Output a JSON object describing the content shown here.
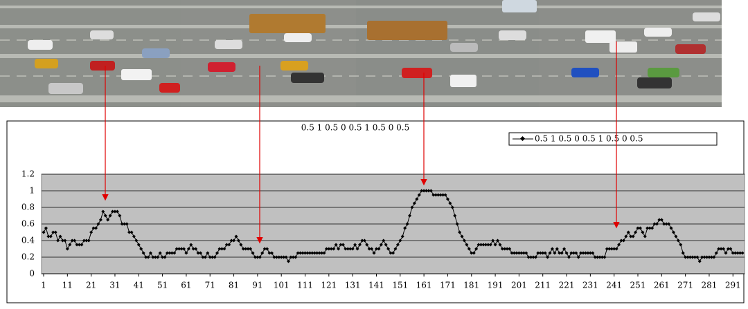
{
  "chart_data": {
    "type": "line",
    "title": "0.5 1 0.5 0 0.5 1 0.5 0 0.5",
    "x": [
      1,
      2,
      3,
      4,
      5,
      6,
      7,
      8,
      9,
      10,
      11,
      12,
      13,
      14,
      15,
      16,
      17,
      18,
      19,
      20,
      21,
      22,
      23,
      24,
      25,
      26,
      27,
      28,
      29,
      30,
      31,
      32,
      33,
      34,
      35,
      36,
      37,
      38,
      39,
      40,
      41,
      42,
      43,
      44,
      45,
      46,
      47,
      48,
      49,
      50,
      51,
      52,
      53,
      54,
      55,
      56,
      57,
      58,
      59,
      60,
      61,
      62,
      63,
      64,
      65,
      66,
      67,
      68,
      69,
      70,
      71,
      72,
      73,
      74,
      75,
      76,
      77,
      78,
      79,
      80,
      81,
      82,
      83,
      84,
      85,
      86,
      87,
      88,
      89,
      90,
      91,
      92,
      93,
      94,
      95,
      96,
      97,
      98,
      99,
      100,
      101,
      102,
      103,
      104,
      105,
      106,
      107,
      108,
      109,
      110,
      111,
      112,
      113,
      114,
      115,
      116,
      117,
      118,
      119,
      120,
      121,
      122,
      123,
      124,
      125,
      126,
      127,
      128,
      129,
      130,
      131,
      132,
      133,
      134,
      135,
      136,
      137,
      138,
      139,
      140,
      141,
      142,
      143,
      144,
      145,
      146,
      147,
      148,
      149,
      150,
      151,
      152,
      153,
      154,
      155,
      156,
      157,
      158,
      159,
      160,
      161,
      162,
      163,
      164,
      165,
      166,
      167,
      168,
      169,
      170,
      171,
      172,
      173,
      174,
      175,
      176,
      177,
      178,
      179,
      180,
      181,
      182,
      183,
      184,
      185,
      186,
      187,
      188,
      189,
      190,
      191,
      192,
      193,
      194,
      195,
      196,
      197,
      198,
      199,
      200,
      201,
      202,
      203,
      204,
      205,
      206,
      207,
      208,
      209,
      210,
      211,
      212,
      213,
      214,
      215,
      216,
      217,
      218,
      219,
      220,
      221,
      222,
      223,
      224,
      225,
      226,
      227,
      228,
      229,
      230,
      231,
      232,
      233,
      234,
      235,
      236,
      237,
      238,
      239,
      240,
      241,
      242,
      243,
      244,
      245,
      246,
      247,
      248,
      249,
      250,
      251,
      252,
      253,
      254,
      255,
      256,
      257,
      258,
      259,
      260,
      261,
      262,
      263,
      264,
      265,
      266,
      267,
      268,
      269,
      270,
      271,
      272,
      273,
      274,
      275,
      276,
      277,
      278,
      279,
      280,
      281,
      282,
      283,
      284,
      285,
      286,
      287,
      288,
      289,
      290,
      291,
      292,
      293,
      294,
      295
    ],
    "series": [
      {
        "name": "0.5 1 0.5 0 0.5 1 0.5 0 0.5",
        "color": "#000000",
        "values": [
          0.5,
          0.55,
          0.45,
          0.45,
          0.5,
          0.5,
          0.4,
          0.45,
          0.4,
          0.4,
          0.3,
          0.35,
          0.4,
          0.4,
          0.35,
          0.35,
          0.35,
          0.4,
          0.4,
          0.4,
          0.5,
          0.55,
          0.55,
          0.6,
          0.65,
          0.75,
          0.7,
          0.65,
          0.7,
          0.75,
          0.75,
          0.75,
          0.7,
          0.6,
          0.6,
          0.6,
          0.5,
          0.5,
          0.45,
          0.4,
          0.35,
          0.3,
          0.25,
          0.2,
          0.2,
          0.25,
          0.2,
          0.2,
          0.2,
          0.25,
          0.2,
          0.2,
          0.25,
          0.25,
          0.25,
          0.25,
          0.3,
          0.3,
          0.3,
          0.3,
          0.25,
          0.3,
          0.35,
          0.3,
          0.3,
          0.25,
          0.25,
          0.2,
          0.2,
          0.25,
          0.2,
          0.2,
          0.2,
          0.25,
          0.3,
          0.3,
          0.3,
          0.35,
          0.35,
          0.4,
          0.4,
          0.45,
          0.4,
          0.35,
          0.3,
          0.3,
          0.3,
          0.3,
          0.25,
          0.2,
          0.2,
          0.2,
          0.25,
          0.3,
          0.3,
          0.25,
          0.25,
          0.2,
          0.2,
          0.2,
          0.2,
          0.2,
          0.2,
          0.15,
          0.2,
          0.2,
          0.2,
          0.25,
          0.25,
          0.25,
          0.25,
          0.25,
          0.25,
          0.25,
          0.25,
          0.25,
          0.25,
          0.25,
          0.25,
          0.3,
          0.3,
          0.3,
          0.3,
          0.35,
          0.3,
          0.35,
          0.35,
          0.3,
          0.3,
          0.3,
          0.3,
          0.35,
          0.3,
          0.35,
          0.4,
          0.4,
          0.35,
          0.3,
          0.3,
          0.25,
          0.3,
          0.3,
          0.35,
          0.4,
          0.35,
          0.3,
          0.25,
          0.25,
          0.3,
          0.35,
          0.4,
          0.45,
          0.55,
          0.6,
          0.7,
          0.8,
          0.85,
          0.9,
          0.95,
          1,
          1,
          1,
          1,
          1,
          0.95,
          0.95,
          0.95,
          0.95,
          0.95,
          0.95,
          0.9,
          0.85,
          0.8,
          0.7,
          0.6,
          0.5,
          0.45,
          0.4,
          0.35,
          0.3,
          0.25,
          0.25,
          0.3,
          0.35,
          0.35,
          0.35,
          0.35,
          0.35,
          0.35,
          0.4,
          0.35,
          0.4,
          0.35,
          0.3,
          0.3,
          0.3,
          0.3,
          0.25,
          0.25,
          0.25,
          0.25,
          0.25,
          0.25,
          0.25,
          0.2,
          0.2,
          0.2,
          0.2,
          0.25,
          0.25,
          0.25,
          0.25,
          0.2,
          0.25,
          0.3,
          0.25,
          0.3,
          0.25,
          0.25,
          0.3,
          0.25,
          0.2,
          0.25,
          0.25,
          0.25,
          0.2,
          0.25,
          0.25,
          0.25,
          0.25,
          0.25,
          0.25,
          0.2,
          0.2,
          0.2,
          0.2,
          0.2,
          0.3,
          0.3,
          0.3,
          0.3,
          0.3,
          0.35,
          0.4,
          0.4,
          0.45,
          0.5,
          0.45,
          0.45,
          0.5,
          0.55,
          0.55,
          0.5,
          0.45,
          0.55,
          0.55,
          0.55,
          0.6,
          0.6,
          0.65,
          0.65,
          0.6,
          0.6,
          0.6,
          0.55,
          0.5,
          0.45,
          0.4,
          0.35,
          0.25,
          0.2,
          0.2,
          0.2,
          0.2,
          0.2,
          0.2,
          0.15,
          0.2,
          0.2,
          0.2,
          0.2,
          0.2,
          0.2,
          0.25,
          0.3,
          0.3,
          0.3,
          0.25,
          0.3,
          0.3,
          0.25,
          0.25,
          0.25,
          0.25,
          0.25
        ]
      }
    ],
    "xlim": [
      1,
      295
    ],
    "xticks": [
      1,
      11,
      21,
      31,
      41,
      51,
      61,
      71,
      81,
      91,
      101,
      111,
      121,
      131,
      141,
      151,
      161,
      171,
      181,
      191,
      201,
      211,
      221,
      231,
      241,
      251,
      261,
      271,
      281,
      291
    ],
    "ylim": [
      0,
      1.2
    ],
    "yticks": [
      0,
      {
        "value": 0.2,
        "label": "0.2"
      },
      {
        "value": 0.4,
        "label": "0.4"
      },
      {
        "value": 0.6,
        "label": "0.6"
      },
      {
        "value": 0.8,
        "label": "0.8"
      },
      1,
      {
        "value": 1.2,
        "label": "1.2"
      }
    ],
    "grid": true,
    "legend": "top-right",
    "plot_background": "#c0c0c0"
  }
}
